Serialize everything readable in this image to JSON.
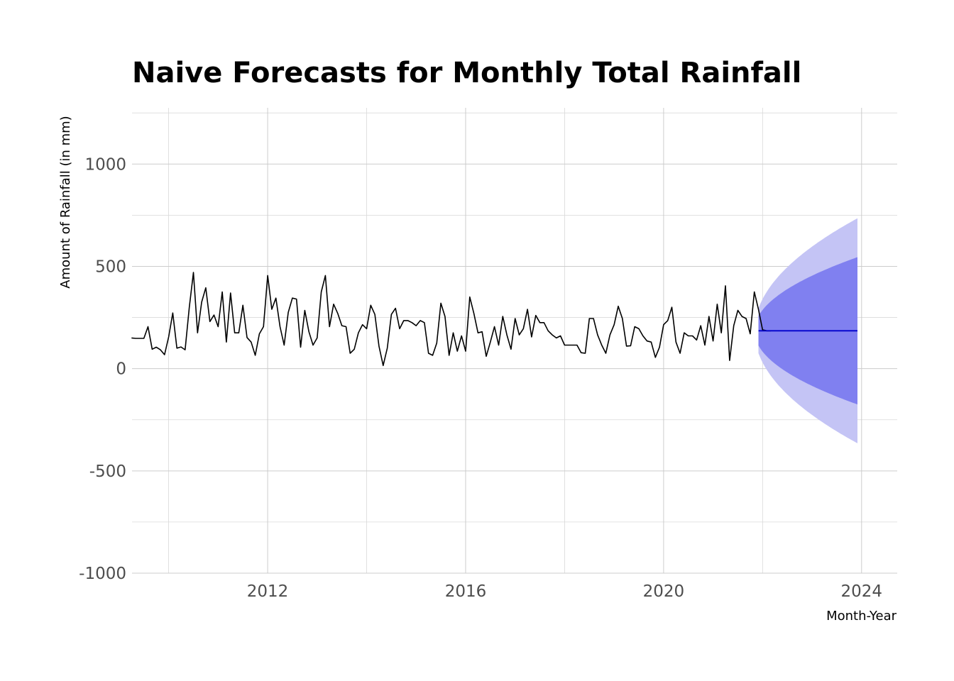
{
  "chart_data": {
    "type": "line",
    "title": "Naive Forecasts for Monthly Total Rainfall",
    "xlabel": "Month-Year",
    "ylabel": "Amount of Rainfall (in mm)",
    "xlim": [
      2009.26,
      2024.72
    ],
    "ylim": [
      -1000,
      1275
    ],
    "x_ticks": [
      2012,
      2016,
      2020,
      2024
    ],
    "y_ticks": [
      -1000,
      -500,
      0,
      500,
      1000
    ],
    "grid": true,
    "legend": "none",
    "colors": {
      "actual": "#000000",
      "forecast_mean": "#0000cc",
      "band80": "#8080f0",
      "band95": "#c4c4f5"
    },
    "series": [
      {
        "values": [
          150,
          148,
          148,
          148,
          205,
          95,
          105,
          92,
          68,
          155,
          272,
          100,
          106,
          92,
          300,
          470,
          175,
          325,
          395,
          230,
          262,
          205,
          375,
          130,
          370,
          175,
          175,
          310,
          152,
          130,
          65,
          170,
          205,
          455,
          290,
          345,
          205,
          115,
          275,
          345,
          340,
          105,
          285,
          180,
          115,
          150,
          375,
          455,
          205,
          315,
          270,
          210,
          205,
          75,
          95,
          175,
          215,
          195,
          310,
          265,
          110,
          15,
          100,
          265,
          295,
          195,
          235,
          235,
          225,
          210,
          235,
          225,
          75,
          65,
          125,
          320,
          255,
          65,
          175,
          85,
          160,
          85,
          350,
          270,
          175,
          180,
          60,
          130,
          205,
          115,
          255,
          165,
          95,
          245,
          165,
          195,
          290,
          155,
          260,
          225,
          225,
          185,
          165,
          150,
          160,
          115,
          115,
          115,
          115,
          78,
          75,
          245,
          245,
          165,
          115,
          75,
          165,
          215,
          305,
          245,
          110,
          112,
          205,
          195,
          160,
          135,
          130,
          55,
          105,
          215,
          235,
          300,
          130,
          75,
          175,
          160,
          160,
          140,
          210,
          115,
          255,
          135,
          315,
          175,
          405,
          40,
          210,
          285,
          255,
          245,
          170,
          375,
          290,
          190,
          185,
          185
        ],
        "start": 2009.25,
        "step": 0.0833333
      }
    ],
    "forecast": {
      "start": 2021.9167,
      "end": 2023.9167,
      "mean": 185,
      "sigma80_per_sqrt_month": 72,
      "sigma95_per_sqrt_month": 110
    }
  }
}
